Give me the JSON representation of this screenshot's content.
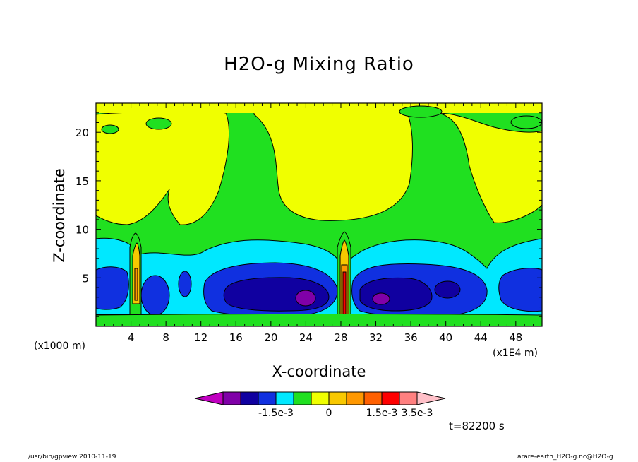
{
  "chart_data": {
    "type": "heatmap",
    "title": "H2O-g Mixing Ratio",
    "xlabel": "X-coordinate",
    "ylabel": "Z-coordinate",
    "x_unit_left": "(x1000 m)",
    "x_unit_right": "(x1E4 m)",
    "xlim": [
      0,
      51
    ],
    "ylim": [
      0,
      23
    ],
    "x_ticks": [
      4,
      8,
      12,
      16,
      20,
      24,
      28,
      32,
      36,
      40,
      44,
      48
    ],
    "y_ticks": [
      5,
      10,
      15,
      20
    ],
    "colorbar": {
      "colors": [
        "#c000c0",
        "#8000a8",
        "#1000a0",
        "#1030e0",
        "#00e8ff",
        "#20e020",
        "#f0ff00",
        "#f8c800",
        "#ff9800",
        "#ff6000",
        "#ff0000",
        "#ff8080",
        "#ffc0c8"
      ],
      "tick_labels": [
        "-1.5e-3",
        "0",
        "1.5e-3",
        "3.5e-3"
      ]
    },
    "time_label": "t=82200 s",
    "program_label": "/usr/bin/gpview  2010-11-19",
    "file_label": "arare-earth_H2O-g.nc@H2O-g"
  }
}
